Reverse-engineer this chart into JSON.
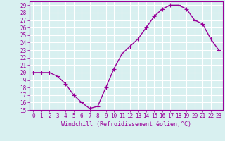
{
  "x": [
    0,
    1,
    2,
    3,
    4,
    5,
    6,
    7,
    8,
    9,
    10,
    11,
    12,
    13,
    14,
    15,
    16,
    17,
    18,
    19,
    20,
    21,
    22,
    23
  ],
  "y": [
    20.0,
    20.0,
    20.0,
    19.5,
    18.5,
    17.0,
    16.0,
    15.2,
    15.5,
    18.0,
    20.5,
    22.5,
    23.5,
    24.5,
    26.0,
    27.5,
    28.5,
    29.0,
    29.0,
    28.5,
    27.0,
    26.5,
    24.5,
    23.0
  ],
  "line_color": "#990099",
  "marker": "+",
  "marker_size": 4,
  "xlabel": "Windchill (Refroidissement éolien,°C)",
  "xlim": [
    -0.5,
    23.5
  ],
  "ylim": [
    15,
    29.5
  ],
  "yticks": [
    15,
    16,
    17,
    18,
    19,
    20,
    21,
    22,
    23,
    24,
    25,
    26,
    27,
    28,
    29
  ],
  "xticks": [
    0,
    1,
    2,
    3,
    4,
    5,
    6,
    7,
    8,
    9,
    10,
    11,
    12,
    13,
    14,
    15,
    16,
    17,
    18,
    19,
    20,
    21,
    22,
    23
  ],
  "background_color": "#d8f0f0",
  "grid_color": "#ffffff",
  "line_color2": "#990099",
  "tick_color": "#990099",
  "label_color": "#990099",
  "xlabel_fontsize": 6.0,
  "tick_fontsize": 5.5,
  "line_width": 1.0
}
